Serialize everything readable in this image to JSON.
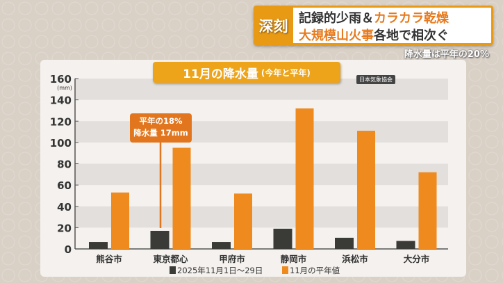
{
  "headline": {
    "tag": "深刻",
    "line1_a": "記録的少雨＆",
    "line1_b": "カラカラ乾燥",
    "line2_a": "大規模山火事",
    "line2_b": "各地で相次ぐ"
  },
  "subtitle": "降水量は平年の20%",
  "source": "日本気象協会",
  "callout": {
    "line1": "平年の18%",
    "line2": "降水量 17mm"
  },
  "colors": {
    "this_year": "#3a3a36",
    "normal": "#ef8a1f",
    "accent": "#eda41a"
  },
  "chart_data": {
    "type": "bar",
    "title": "11月の降水量",
    "title_suffix": "(今年と平年)",
    "ylabel": "(mm)",
    "ylim": [
      0,
      160
    ],
    "yticks": [
      0,
      20,
      40,
      60,
      80,
      100,
      120,
      140,
      160
    ],
    "categories": [
      "熊谷市",
      "東京都心",
      "甲府市",
      "静岡市",
      "浜松市",
      "大分市"
    ],
    "series": [
      {
        "name": "2025年11月1日〜29日",
        "values": [
          6.5,
          17,
          6.5,
          19,
          10.5,
          7.5
        ]
      },
      {
        "name": "11月の平年値",
        "values": [
          53,
          95,
          52,
          132,
          111,
          72
        ]
      }
    ],
    "legend": "bottom",
    "grid": "horizontal bands"
  }
}
